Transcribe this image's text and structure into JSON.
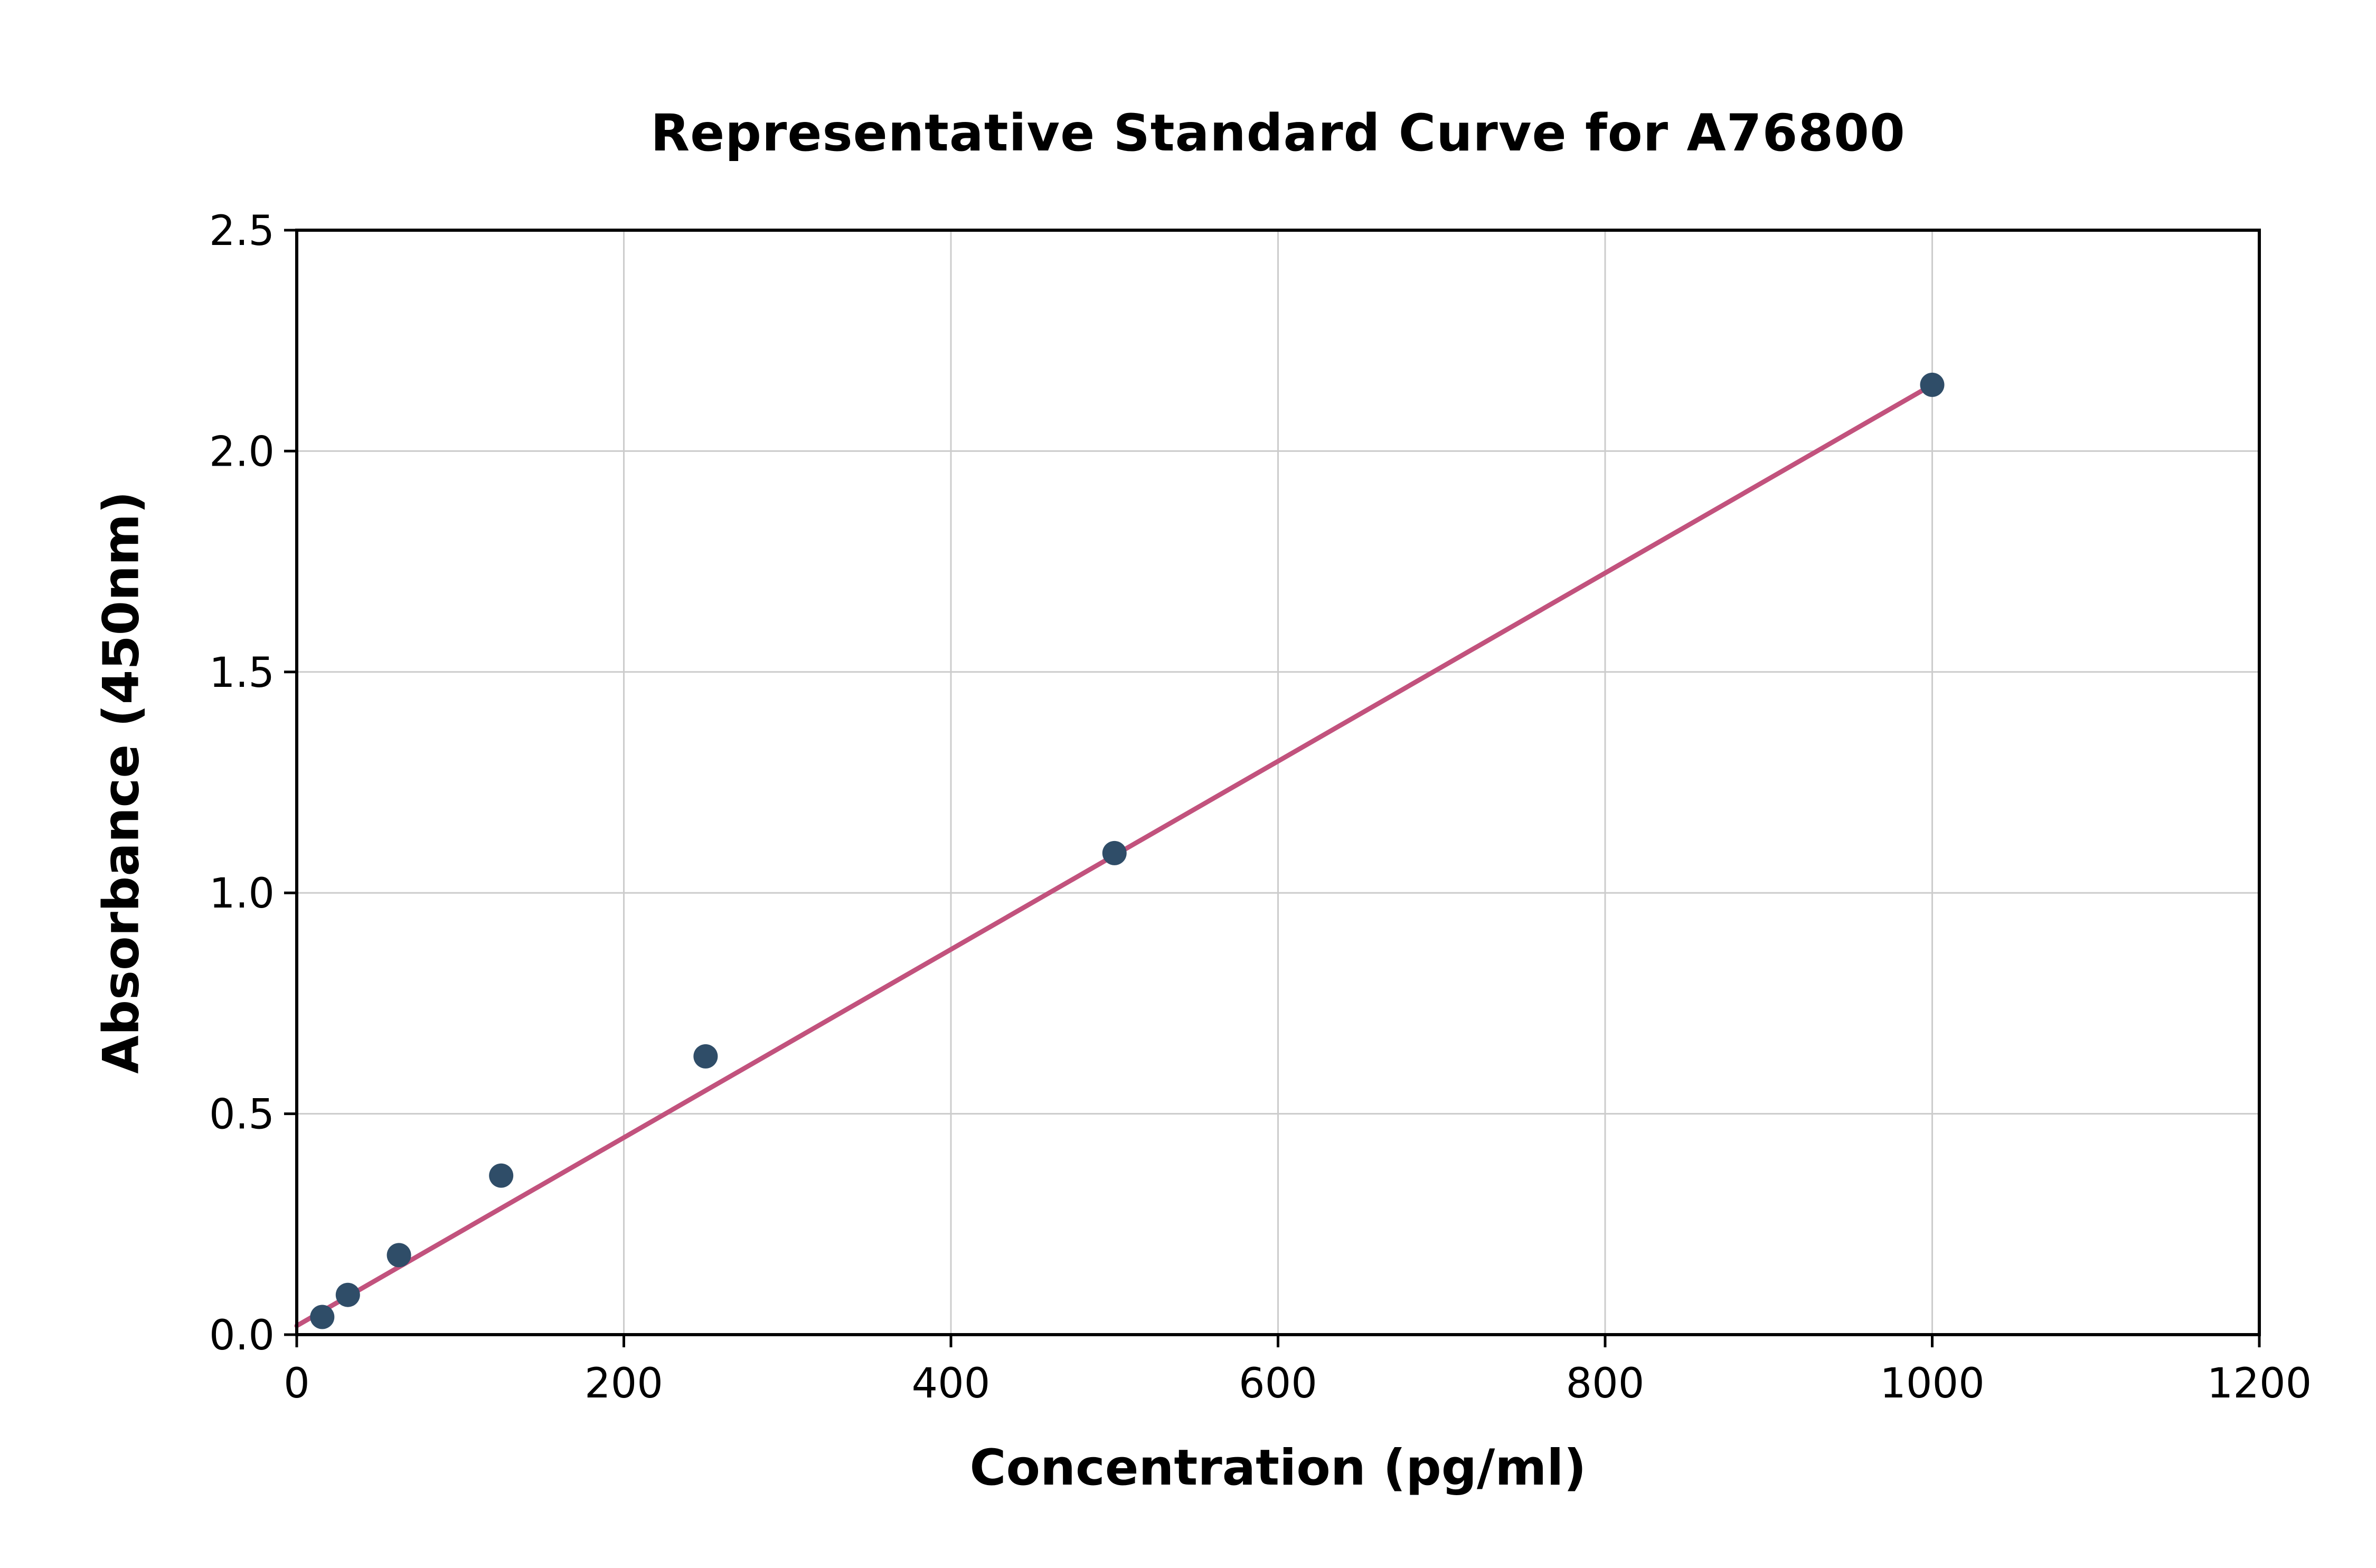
{
  "chart_data": {
    "type": "scatter",
    "title": "Representative Standard Curve for A76800",
    "xlabel": "Concentration (pg/ml)",
    "ylabel": "Absorbance (450nm)",
    "xlim": [
      0,
      1200
    ],
    "ylim": [
      0,
      2.5
    ],
    "x_ticks": [
      0,
      200,
      400,
      600,
      800,
      1000,
      1200
    ],
    "x_tick_labels": [
      "0",
      "200",
      "400",
      "600",
      "800",
      "1000",
      "1200"
    ],
    "y_ticks": [
      0,
      0.5,
      1.0,
      1.5,
      2.0,
      2.5
    ],
    "y_tick_labels": [
      "0.0",
      "0.5",
      "1.0",
      "1.5",
      "2.0",
      "2.5"
    ],
    "grid": true,
    "legend_position": "none",
    "series": [
      {
        "name": "standard-points",
        "type": "scatter",
        "x": [
          15.6,
          31.25,
          62.5,
          125,
          250,
          500,
          1000
        ],
        "y": [
          0.04,
          0.09,
          0.18,
          0.36,
          0.63,
          1.09,
          2.15
        ],
        "color": "#2f4d68"
      }
    ],
    "trend_line": {
      "name": "fit-line",
      "x": [
        0,
        1000
      ],
      "y": [
        0.02,
        2.15
      ],
      "color": "#c2527d"
    },
    "colors": {
      "grid": "#cccccc",
      "axis": "#000000",
      "background": "#ffffff"
    }
  }
}
